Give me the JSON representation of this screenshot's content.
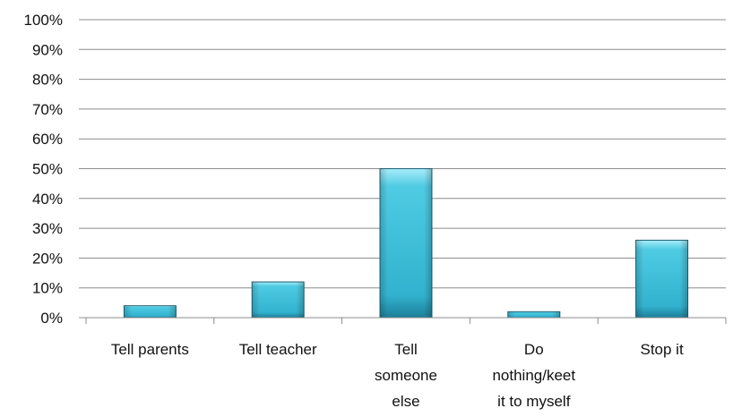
{
  "chart_data": {
    "type": "bar",
    "categories": [
      [
        "Tell parents"
      ],
      [
        "Tell teacher"
      ],
      [
        "Tell",
        "someone",
        "else"
      ],
      [
        "Do",
        "nothing/keet",
        "it to myself"
      ],
      [
        "Stop it"
      ]
    ],
    "values": [
      4,
      12,
      50,
      2,
      26
    ],
    "y_ticks": [
      "0%",
      "10%",
      "20%",
      "30%",
      "40%",
      "50%",
      "60%",
      "70%",
      "80%",
      "90%",
      "100%"
    ],
    "ylim": [
      0,
      100
    ],
    "grid": true,
    "legend": "none",
    "colors": {
      "bar_top": "#a8ecf8",
      "bar_mid": "#3fc1dc",
      "bar_bottom": "#1d7f99",
      "bar_edge": "#1f5f73",
      "grid": "#8c8c8c",
      "axis": "#8c8c8c"
    }
  }
}
